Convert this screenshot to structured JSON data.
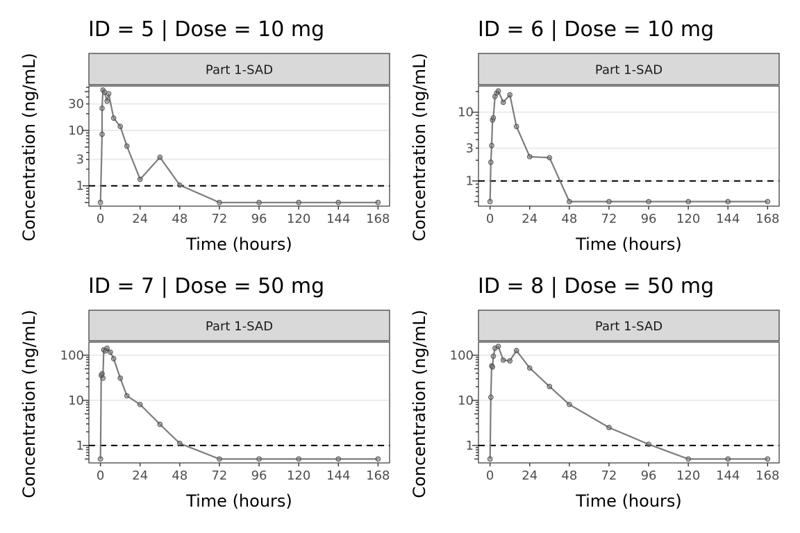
{
  "chart_data": [
    {
      "type": "line",
      "title": "ID = 5 | Dose = 10 mg",
      "strip_label": "Part 1-SAD",
      "xlabel": "Time (hours)",
      "ylabel": "Concentration (ng/mL)",
      "x_scale": "linear",
      "y_scale": "log10",
      "xlim": [
        -7,
        175
      ],
      "ylim": [
        0.43,
        63
      ],
      "x_ticks": [
        0,
        24,
        48,
        72,
        96,
        120,
        144,
        168
      ],
      "x_tick_labels": [
        "0",
        "24",
        "48",
        "72",
        "96",
        "120",
        "144",
        "168"
      ],
      "y_ticks": [
        1,
        3,
        10,
        30
      ],
      "y_tick_labels": [
        "1",
        "3",
        "10",
        "30"
      ],
      "reference_line": {
        "y": 1,
        "style": "dashed"
      },
      "grid": "horizontal major",
      "series": [
        {
          "name": "ID 5",
          "x": [
            0,
            1,
            1,
            1.5,
            2.5,
            4,
            5,
            8,
            12,
            16,
            24,
            36,
            48,
            72,
            96,
            120,
            144,
            168
          ],
          "y": [
            0.5,
            8.5,
            25,
            53.5,
            48.6,
            33.6,
            45.8,
            16.6,
            11.8,
            5.2,
            1.31,
            3.27,
            1.03,
            0.5,
            0.5,
            0.5,
            0.5,
            0.5
          ]
        }
      ]
    },
    {
      "type": "line",
      "title": "ID = 6 | Dose = 10 mg",
      "strip_label": "Part 1-SAD",
      "xlabel": "Time (hours)",
      "ylabel": "Concentration (ng/mL)",
      "x_scale": "linear",
      "y_scale": "log10",
      "xlim": [
        -7,
        175
      ],
      "ylim": [
        0.43,
        24
      ],
      "x_ticks": [
        0,
        24,
        48,
        72,
        96,
        120,
        144,
        168
      ],
      "x_tick_labels": [
        "0",
        "24",
        "48",
        "72",
        "96",
        "120",
        "144",
        "168"
      ],
      "y_ticks": [
        1,
        3,
        10
      ],
      "y_tick_labels": [
        "1",
        "3",
        "10"
      ],
      "reference_line": {
        "y": 1,
        "style": "dashed"
      },
      "grid": "horizontal major",
      "series": [
        {
          "name": "ID 6",
          "x": [
            0,
            0.5,
            1,
            1.5,
            2,
            3,
            4,
            5,
            8,
            12,
            16,
            24,
            36,
            48,
            72,
            96,
            120,
            144,
            168
          ],
          "y": [
            0.5,
            1.87,
            3.27,
            7.7,
            8.3,
            16.9,
            19,
            20.4,
            13.9,
            17.9,
            6.2,
            2.25,
            2.18,
            0.5,
            0.5,
            0.5,
            0.5,
            0.5,
            0.5
          ]
        }
      ]
    },
    {
      "type": "line",
      "title": "ID = 7 | Dose = 50 mg",
      "strip_label": "Part 1-SAD",
      "xlabel": "Time (hours)",
      "ylabel": "Concentration (ng/mL)",
      "x_scale": "linear",
      "y_scale": "log10",
      "xlim": [
        -7,
        175
      ],
      "ylim": [
        0.41,
        195
      ],
      "x_ticks": [
        0,
        24,
        48,
        72,
        96,
        120,
        144,
        168
      ],
      "x_tick_labels": [
        "0",
        "24",
        "48",
        "72",
        "96",
        "120",
        "144",
        "168"
      ],
      "y_ticks": [
        1,
        10,
        100
      ],
      "y_tick_labels": [
        "1",
        "10",
        "100"
      ],
      "reference_line": {
        "y": 1,
        "style": "dashed"
      },
      "grid": "horizontal major",
      "series": [
        {
          "name": "ID 7",
          "x": [
            0,
            0.5,
            1,
            1.5,
            2,
            3,
            4,
            6,
            8,
            12,
            16,
            24,
            36,
            48,
            72,
            96,
            120,
            144,
            168
          ],
          "y": [
            0.5,
            35.8,
            38.9,
            31,
            132,
            124,
            143,
            117,
            84,
            31,
            12.6,
            8.1,
            2.94,
            1.11,
            0.5,
            0.5,
            0.5,
            0.5,
            0.5
          ]
        }
      ]
    },
    {
      "type": "line",
      "title": "ID = 8 | Dose = 50 mg",
      "strip_label": "Part 1-SAD",
      "xlabel": "Time (hours)",
      "ylabel": "Concentration (ng/mL)",
      "x_scale": "linear",
      "y_scale": "log10",
      "xlim": [
        -7,
        175
      ],
      "ylim": [
        0.41,
        195
      ],
      "x_ticks": [
        0,
        24,
        48,
        72,
        96,
        120,
        144,
        168
      ],
      "x_tick_labels": [
        "0",
        "24",
        "48",
        "72",
        "96",
        "120",
        "144",
        "168"
      ],
      "y_ticks": [
        1,
        10,
        100
      ],
      "y_tick_labels": [
        "1",
        "10",
        "100"
      ],
      "reference_line": {
        "y": 1,
        "style": "dashed"
      },
      "grid": "horizontal major",
      "series": [
        {
          "name": "ID 8",
          "x": [
            0,
            0.5,
            1,
            1.5,
            2,
            3,
            5,
            8,
            12,
            16,
            24,
            36,
            48,
            72,
            96,
            120,
            144,
            168
          ],
          "y": [
            0.5,
            11.7,
            58,
            55,
            95,
            143,
            157,
            78,
            75,
            127,
            52,
            20.3,
            8.1,
            2.5,
            1.06,
            0.5,
            0.5,
            0.5
          ]
        }
      ]
    }
  ]
}
